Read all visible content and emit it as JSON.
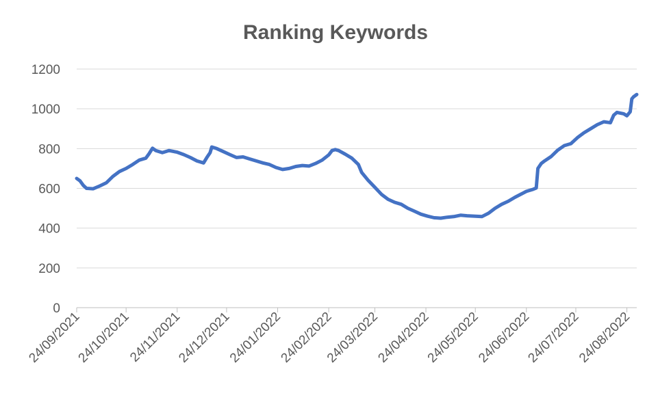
{
  "chart_data": {
    "type": "line",
    "title": "Ranking Keywords",
    "xlabel": "",
    "ylabel": "",
    "ylim": [
      0,
      1200
    ],
    "y_ticks": [
      0,
      200,
      400,
      600,
      800,
      1000,
      1200
    ],
    "x_range": [
      "24/09/2021",
      "30/08/2022"
    ],
    "x_ticks": [
      "24/09/2021",
      "24/10/2021",
      "24/11/2021",
      "24/12/2021",
      "24/01/2022",
      "24/02/2022",
      "24/03/2022",
      "24/04/2022",
      "24/05/2022",
      "24/06/2022",
      "24/07/2022",
      "24/08/2022"
    ],
    "grid": true,
    "legend": "none",
    "series_color": "#4472c4",
    "series": [
      {
        "points": [
          [
            "24/09/2021",
            650
          ],
          [
            "26/09/2021",
            638
          ],
          [
            "28/09/2021",
            615
          ],
          [
            "30/09/2021",
            600
          ],
          [
            "04/10/2021",
            598
          ],
          [
            "08/10/2021",
            612
          ],
          [
            "12/10/2021",
            628
          ],
          [
            "16/10/2021",
            660
          ],
          [
            "20/10/2021",
            685
          ],
          [
            "24/10/2021",
            700
          ],
          [
            "28/10/2021",
            720
          ],
          [
            "01/11/2021",
            742
          ],
          [
            "05/11/2021",
            752
          ],
          [
            "07/11/2021",
            775
          ],
          [
            "09/11/2021",
            802
          ],
          [
            "11/11/2021",
            790
          ],
          [
            "15/11/2021",
            780
          ],
          [
            "19/11/2021",
            790
          ],
          [
            "24/11/2021",
            782
          ],
          [
            "28/11/2021",
            770
          ],
          [
            "02/12/2021",
            755
          ],
          [
            "06/12/2021",
            738
          ],
          [
            "10/12/2021",
            728
          ],
          [
            "12/12/2021",
            755
          ],
          [
            "14/12/2021",
            780
          ],
          [
            "15/12/2021",
            808
          ],
          [
            "18/12/2021",
            800
          ],
          [
            "22/12/2021",
            785
          ],
          [
            "26/12/2021",
            770
          ],
          [
            "30/12/2021",
            755
          ],
          [
            "03/01/2022",
            758
          ],
          [
            "07/01/2022",
            748
          ],
          [
            "11/01/2022",
            738
          ],
          [
            "15/01/2022",
            728
          ],
          [
            "19/01/2022",
            720
          ],
          [
            "23/01/2022",
            705
          ],
          [
            "27/01/2022",
            695
          ],
          [
            "31/01/2022",
            700
          ],
          [
            "04/02/2022",
            710
          ],
          [
            "08/02/2022",
            715
          ],
          [
            "12/02/2022",
            712
          ],
          [
            "16/02/2022",
            725
          ],
          [
            "20/02/2022",
            742
          ],
          [
            "24/02/2022",
            768
          ],
          [
            "26/02/2022",
            790
          ],
          [
            "28/02/2022",
            795
          ],
          [
            "02/03/2022",
            790
          ],
          [
            "06/03/2022",
            772
          ],
          [
            "10/03/2022",
            752
          ],
          [
            "14/03/2022",
            720
          ],
          [
            "16/03/2022",
            680
          ],
          [
            "20/03/2022",
            640
          ],
          [
            "24/03/2022",
            605
          ],
          [
            "28/03/2022",
            570
          ],
          [
            "01/04/2022",
            545
          ],
          [
            "05/04/2022",
            530
          ],
          [
            "09/04/2022",
            520
          ],
          [
            "13/04/2022",
            500
          ],
          [
            "17/04/2022",
            485
          ],
          [
            "21/04/2022",
            470
          ],
          [
            "25/04/2022",
            460
          ],
          [
            "29/04/2022",
            452
          ],
          [
            "03/05/2022",
            450
          ],
          [
            "07/05/2022",
            455
          ],
          [
            "11/05/2022",
            458
          ],
          [
            "15/05/2022",
            465
          ],
          [
            "19/05/2022",
            462
          ],
          [
            "24/05/2022",
            460
          ],
          [
            "28/05/2022",
            458
          ],
          [
            "01/06/2022",
            475
          ],
          [
            "05/06/2022",
            500
          ],
          [
            "09/06/2022",
            520
          ],
          [
            "13/06/2022",
            535
          ],
          [
            "17/06/2022",
            555
          ],
          [
            "21/06/2022",
            572
          ],
          [
            "24/06/2022",
            585
          ],
          [
            "28/06/2022",
            595
          ],
          [
            "30/06/2022",
            602
          ],
          [
            "01/07/2022",
            700
          ],
          [
            "03/07/2022",
            725
          ],
          [
            "05/07/2022",
            738
          ],
          [
            "09/07/2022",
            760
          ],
          [
            "13/07/2022",
            792
          ],
          [
            "17/07/2022",
            815
          ],
          [
            "21/07/2022",
            825
          ],
          [
            "25/07/2022",
            855
          ],
          [
            "29/07/2022",
            880
          ],
          [
            "02/08/2022",
            900
          ],
          [
            "06/08/2022",
            920
          ],
          [
            "10/08/2022",
            935
          ],
          [
            "14/08/2022",
            930
          ],
          [
            "16/08/2022",
            968
          ],
          [
            "18/08/2022",
            982
          ],
          [
            "22/08/2022",
            975
          ],
          [
            "24/08/2022",
            965
          ],
          [
            "26/08/2022",
            985
          ],
          [
            "27/08/2022",
            1050
          ],
          [
            "28/08/2022",
            1060
          ],
          [
            "30/08/2022",
            1072
          ]
        ]
      }
    ]
  }
}
